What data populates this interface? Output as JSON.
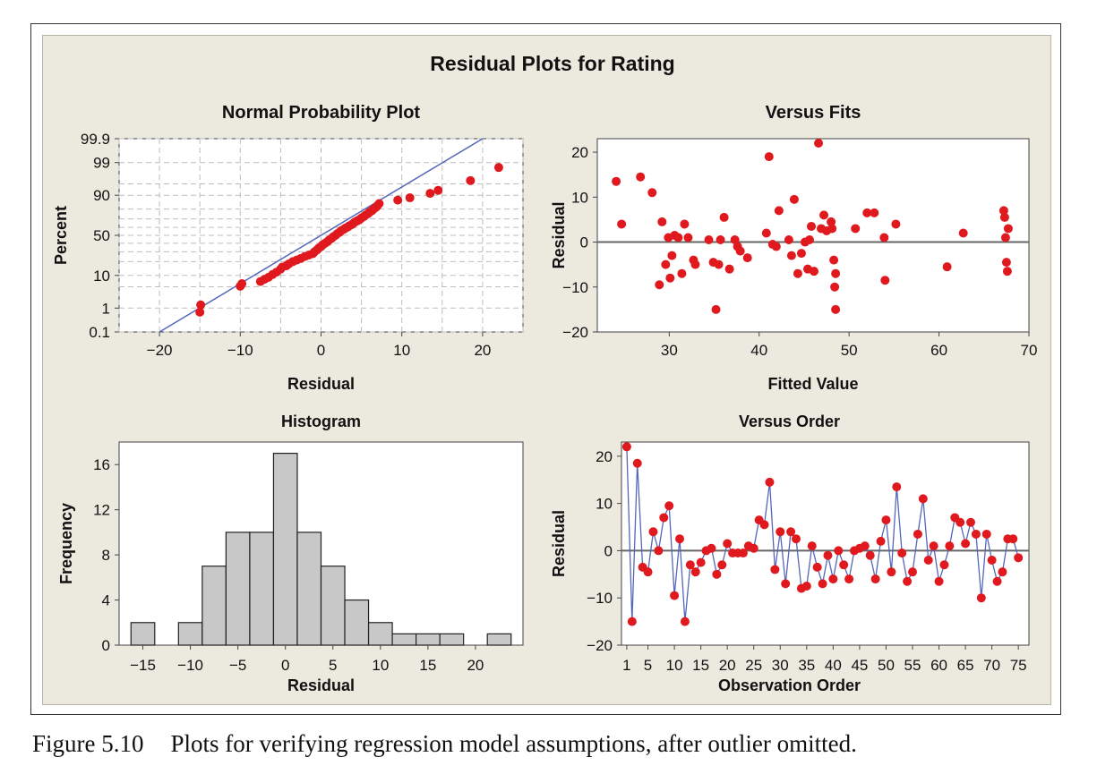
{
  "figure_title": "Residual Plots for Rating",
  "caption": {
    "number": "Figure 5.10",
    "text": "Plots for verifying regression model assumptions, after outlier omitted."
  },
  "colors": {
    "point": "#e0191e",
    "line": "#5566bb",
    "bar": "#c8c8c8",
    "panel": "#ece9df",
    "grid": "#bdbdbd"
  },
  "chart_data": [
    {
      "id": "npp",
      "type": "scatter",
      "title": "Normal Probability Plot",
      "xlabel": "Residual",
      "ylabel": "Percent",
      "xlim": [
        -25,
        25
      ],
      "xticks": [
        -20,
        -10,
        0,
        10,
        20
      ],
      "xtick_labels": [
        "−20",
        "−10",
        "0",
        "10",
        "20"
      ],
      "y_scale": "normal-probability",
      "yticks": [
        0.1,
        1,
        10,
        50,
        90,
        99,
        99.9
      ],
      "ytick_labels": [
        "0.1",
        "1",
        "10",
        "50",
        "90",
        "99",
        "99.9"
      ],
      "grid": true,
      "fit_line": {
        "x": [
          -20,
          20
        ],
        "percent": [
          0.1,
          99.9
        ]
      },
      "x": [
        -15,
        -14.9,
        -10,
        -9.8,
        -7.5,
        -7,
        -6.5,
        -6,
        -5.5,
        -5,
        -4.8,
        -4.3,
        -4,
        -3.5,
        -3,
        -2.5,
        -2,
        -1.5,
        -1,
        -0.8,
        -0.5,
        -0.3,
        0,
        0.2,
        0.5,
        0.8,
        1,
        1.3,
        1.5,
        1.8,
        2,
        2.3,
        2.5,
        2.8,
        3,
        3.3,
        3.5,
        3.8,
        4,
        4.2,
        4.5,
        4.8,
        5,
        5.3,
        5.5,
        5.8,
        6,
        6.3,
        6.5,
        6.8,
        7,
        7.2,
        9.5,
        11,
        13.5,
        14.5,
        18.5,
        22
      ],
      "percent": [
        0.7,
        1.3,
        5.2,
        6.1,
        7,
        8,
        9,
        10.5,
        12,
        14,
        15.5,
        16.5,
        18,
        20,
        21.5,
        23,
        25,
        26.5,
        28,
        30,
        32,
        34,
        36,
        38,
        40,
        42,
        44,
        46,
        48,
        50,
        52,
        54,
        56,
        57.5,
        59,
        60.5,
        62,
        63.5,
        65,
        66.5,
        68,
        69.5,
        71,
        72.5,
        74,
        75.5,
        77,
        78.5,
        80,
        81.5,
        83,
        84.5,
        87,
        88.5,
        91,
        92.5,
        96,
        98.5
      ]
    },
    {
      "id": "fits",
      "type": "scatter",
      "title": "Versus Fits",
      "xlabel": "Fitted Value",
      "ylabel": "Residual",
      "xlim": [
        22,
        70
      ],
      "ylim": [
        -20,
        23
      ],
      "xticks": [
        30,
        40,
        50,
        60,
        70
      ],
      "yticks": [
        -20,
        -10,
        0,
        10,
        20
      ],
      "ytick_labels": [
        "−20",
        "−10",
        "0",
        "10",
        "20"
      ],
      "reference_line": 0,
      "x": [
        24.1,
        24.7,
        26.8,
        28.1,
        28.9,
        29.2,
        29.6,
        29.9,
        30.1,
        30.3,
        30.6,
        31,
        31.4,
        31.7,
        32.1,
        32.7,
        32.9,
        34.4,
        34.9,
        35.2,
        35.5,
        35.7,
        36.1,
        36.7,
        37.3,
        37.6,
        37.9,
        38.7,
        40.8,
        41.1,
        41.5,
        41.9,
        42.2,
        43.3,
        43.6,
        43.9,
        44.3,
        44.7,
        45.1,
        45.4,
        45.6,
        45.8,
        46.1,
        46.6,
        46.9,
        47.2,
        47.5,
        48,
        48.1,
        48.3,
        48.5,
        50.7,
        52,
        52.8,
        53.9,
        54,
        55.2,
        60.9,
        62.7,
        67.2,
        67.3,
        67.4,
        67.5,
        67.6,
        67.7
      ],
      "y": [
        13.5,
        4,
        14.5,
        11,
        -9.5,
        4.5,
        -5,
        1,
        -8,
        -3,
        1.5,
        1,
        -7,
        4,
        1,
        -4,
        -5,
        0.5,
        -4.5,
        -15,
        -5,
        0.5,
        5.5,
        -6,
        0.5,
        -1,
        -2,
        -3.5,
        2,
        19,
        -0.5,
        -1,
        7,
        0.5,
        -3,
        9.5,
        -7,
        -2.5,
        0,
        -6,
        0.5,
        3.5,
        -6.5,
        22,
        3,
        6,
        2.5,
        4.5,
        3,
        -4,
        -7,
        3,
        6.5,
        6.5,
        1,
        -8.5,
        4,
        -5.5,
        2,
        7,
        5.5,
        1,
        -4.5,
        -6.5,
        3
      ],
      "x_extra": [
        48.4,
        48.5
      ],
      "y_extra": [
        -10,
        -15
      ]
    },
    {
      "id": "hist",
      "type": "bar",
      "title": "Histogram",
      "xlabel": "Residual",
      "ylabel": "Frequency",
      "xlim": [
        -17.5,
        25
      ],
      "ylim": [
        0,
        18
      ],
      "xticks": [
        -15,
        -10,
        -5,
        0,
        5,
        10,
        15,
        20
      ],
      "xtick_labels": [
        "−15",
        "−10",
        "−5",
        "0",
        "5",
        "10",
        "15",
        "20"
      ],
      "yticks": [
        0,
        4,
        8,
        12,
        16
      ],
      "bin_width": 2.5,
      "bin_starts": [
        -16.25,
        -13.75,
        -11.25,
        -8.75,
        -6.25,
        -3.75,
        -1.25,
        1.25,
        3.75,
        6.25,
        8.75,
        11.25,
        13.75,
        16.25,
        18.75,
        21.25
      ],
      "values": [
        2,
        0,
        2,
        7,
        10,
        10,
        17,
        10,
        7,
        4,
        2,
        1,
        1,
        1,
        0,
        1
      ]
    },
    {
      "id": "order",
      "type": "line",
      "title": "Versus Order",
      "xlabel": "Observation Order",
      "ylabel": "Residual",
      "xlim": [
        0,
        77
      ],
      "ylim": [
        -20,
        23
      ],
      "xticks": [
        1,
        5,
        10,
        15,
        20,
        25,
        30,
        35,
        40,
        45,
        50,
        55,
        60,
        65,
        70,
        75
      ],
      "yticks": [
        -20,
        -10,
        0,
        10,
        20
      ],
      "ytick_labels": [
        "−20",
        "−10",
        "0",
        "10",
        "20"
      ],
      "reference_line": 0,
      "y": [
        22,
        -15,
        18.5,
        -3.5,
        -4.5,
        4,
        0,
        7,
        9.5,
        -9.5,
        2.5,
        -15,
        -3,
        -4.5,
        -2.5,
        0,
        0.5,
        -5,
        -3,
        1.5,
        -0.5,
        -0.5,
        -0.5,
        1,
        0.5,
        6.5,
        5.5,
        14.5,
        -4,
        4,
        -7,
        4,
        2.5,
        -8,
        -7.5,
        1,
        -3.5,
        -7,
        -1,
        -6,
        0,
        -3,
        -6,
        0,
        0.5,
        1,
        -1,
        -6,
        2,
        6.5,
        -4.5,
        13.5,
        -0.5,
        -6.5,
        -4.5,
        3.5,
        11,
        -2,
        1,
        -6.5,
        -3,
        1,
        7,
        6,
        1.5,
        6,
        3.5,
        -10,
        3.5,
        -2,
        -6.5,
        -4.5,
        2.5,
        2.5,
        -1.5
      ]
    }
  ]
}
